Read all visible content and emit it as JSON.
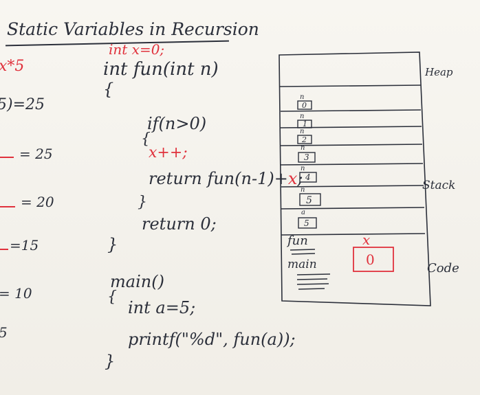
{
  "title": "Static Variables in Recursion",
  "left_calc": {
    "top": "x*5",
    "lines": [
      "5)=25",
      "= 25",
      "= 20",
      "=15",
      "= 10",
      "5"
    ]
  },
  "code": {
    "global_decl": "int x=0;",
    "fun_sig": "int fun(int n)",
    "open_brace": "{",
    "if_line": "if(n>0)",
    "if_open": "{",
    "incr": "x++;",
    "return_rec_a": "return fun(n-1)+",
    "return_rec_x": "x",
    "return_rec_end": ";",
    "if_close": "}",
    "return_zero": "return 0;",
    "close_brace": "}",
    "main_sig": "main()",
    "main_open": "{",
    "int_a": "int a=5;",
    "printf": "printf(\"%d\", fun(a));",
    "main_close": "}"
  },
  "memory": {
    "heap_label": "Heap",
    "stack_label": "Stack",
    "code_label": "Code",
    "frames": [
      {
        "var": "n",
        "value": "0"
      },
      {
        "var": "n",
        "value": "1"
      },
      {
        "var": "n",
        "value": "2"
      },
      {
        "var": "n",
        "value": "3"
      },
      {
        "var": "n",
        "value": "4"
      },
      {
        "var": "n",
        "value": "5"
      },
      {
        "var": "a",
        "value": "5"
      }
    ],
    "fun_label": "fun",
    "main_label": "main",
    "static_var_name": "x",
    "static_var_value": "0"
  },
  "colors": {
    "ink": "#2b2f3a",
    "red": "#e0313c",
    "board": "#f6f4ef"
  }
}
